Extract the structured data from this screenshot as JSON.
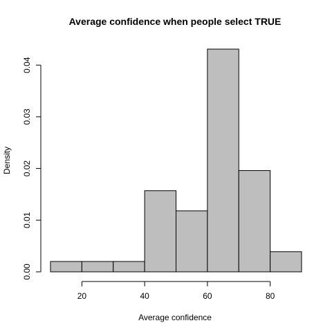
{
  "chart_data": {
    "type": "bar",
    "title": "Average confidence when people select TRUE",
    "xlabel": "Average confidence",
    "ylabel": "Density",
    "bins": [
      {
        "from": 10,
        "to": 20,
        "density": 0.002
      },
      {
        "from": 20,
        "to": 30,
        "density": 0.002
      },
      {
        "from": 30,
        "to": 40,
        "density": 0.002
      },
      {
        "from": 40,
        "to": 50,
        "density": 0.0157
      },
      {
        "from": 50,
        "to": 60,
        "density": 0.0118
      },
      {
        "from": 60,
        "to": 70,
        "density": 0.0431
      },
      {
        "from": 70,
        "to": 80,
        "density": 0.0196
      },
      {
        "from": 80,
        "to": 90,
        "density": 0.0039
      }
    ],
    "xlim": [
      10,
      90
    ],
    "ylim": [
      0,
      0.0431
    ],
    "x_ticks": [
      20,
      40,
      60,
      80
    ],
    "x_tick_labels": [
      "20",
      "40",
      "60",
      "80"
    ],
    "y_ticks": [
      0,
      0.01,
      0.02,
      0.03,
      0.04
    ],
    "y_tick_labels": [
      "0.00",
      "0.01",
      "0.02",
      "0.03",
      "0.04"
    ],
    "bar_fill": "#bebebe",
    "bar_stroke": "#000000",
    "grid": false,
    "legend": "none"
  }
}
